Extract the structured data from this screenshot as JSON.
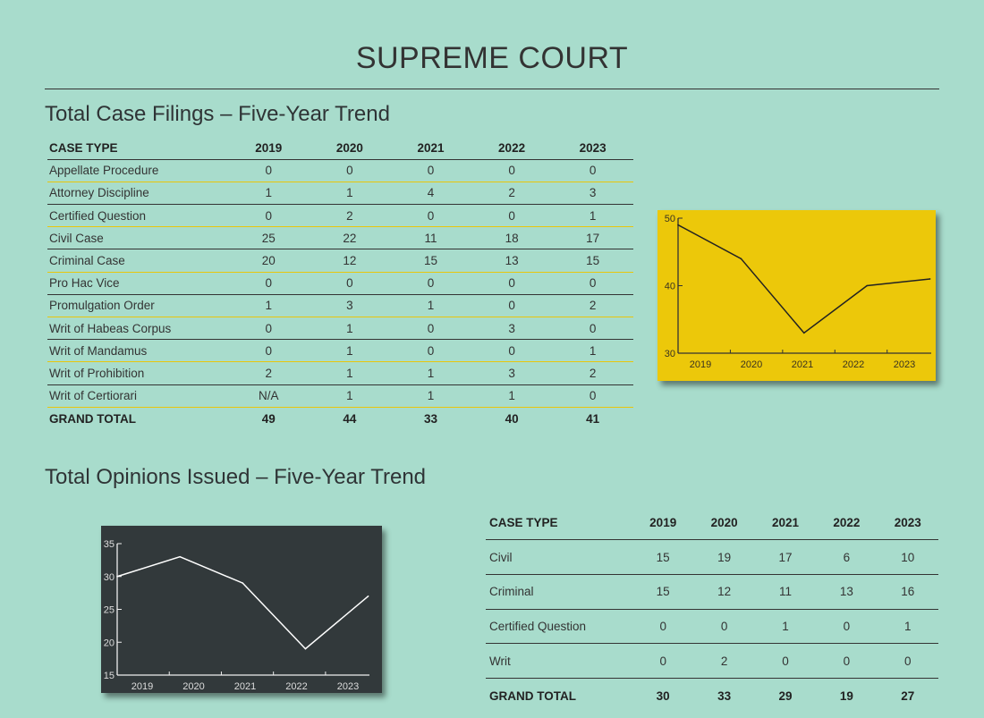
{
  "title": "SUPREME COURT",
  "filings": {
    "heading": "Total Case Filings – Five-Year Trend",
    "columns": [
      "CASE TYPE",
      "2019",
      "2020",
      "2021",
      "2022",
      "2023"
    ],
    "rows": [
      [
        "Appellate Procedure",
        "0",
        "0",
        "0",
        "0",
        "0"
      ],
      [
        "Attorney Discipline",
        "1",
        "1",
        "4",
        "2",
        "3"
      ],
      [
        "Certified Question",
        "0",
        "2",
        "0",
        "0",
        "1"
      ],
      [
        "Civil Case",
        "25",
        "22",
        "11",
        "18",
        "17"
      ],
      [
        "Criminal Case",
        "20",
        "12",
        "15",
        "13",
        "15"
      ],
      [
        "Pro Hac Vice",
        "0",
        "0",
        "0",
        "0",
        "0"
      ],
      [
        "Promulgation Order",
        "1",
        "3",
        "1",
        "0",
        "2"
      ],
      [
        "Writ of Habeas Corpus",
        "0",
        "1",
        "0",
        "3",
        "0"
      ],
      [
        "Writ of Mandamus",
        "0",
        "1",
        "0",
        "0",
        "1"
      ],
      [
        "Writ of Prohibition",
        "2",
        "1",
        "1",
        "3",
        "2"
      ],
      [
        "Writ of Certiorari",
        "N/A",
        "1",
        "1",
        "1",
        "0"
      ]
    ],
    "total": [
      "GRAND TOTAL",
      "49",
      "44",
      "33",
      "40",
      "41"
    ]
  },
  "opinions": {
    "heading": "Total Opinions Issued – Five-Year Trend",
    "columns": [
      "CASE TYPE",
      "2019",
      "2020",
      "2021",
      "2022",
      "2023"
    ],
    "rows": [
      [
        "Civil",
        "15",
        "19",
        "17",
        "6",
        "10"
      ],
      [
        "Criminal",
        "15",
        "12",
        "11",
        "13",
        "16"
      ],
      [
        "Certified Question",
        "0",
        "0",
        "1",
        "0",
        "1"
      ],
      [
        "Writ",
        "0",
        "2",
        "0",
        "0",
        "0"
      ]
    ],
    "total": [
      "GRAND TOTAL",
      "30",
      "33",
      "29",
      "19",
      "27"
    ]
  },
  "chart_data": [
    {
      "type": "line",
      "title": "Total Case Filings",
      "categories": [
        "2019",
        "2020",
        "2021",
        "2022",
        "2023"
      ],
      "values": [
        49,
        44,
        33,
        40,
        41
      ],
      "ylim": [
        30,
        50
      ],
      "yticks": [
        30,
        40,
        50
      ],
      "background": "#ecc80a",
      "line_color": "#222222"
    },
    {
      "type": "line",
      "title": "Total Opinions Issued",
      "categories": [
        "2019",
        "2020",
        "2021",
        "2022",
        "2023"
      ],
      "values": [
        30,
        33,
        29,
        19,
        27
      ],
      "ylim": [
        15,
        35
      ],
      "yticks": [
        15,
        20,
        25,
        30,
        35
      ],
      "background": "#32393b",
      "line_color": "#ffffff"
    }
  ]
}
